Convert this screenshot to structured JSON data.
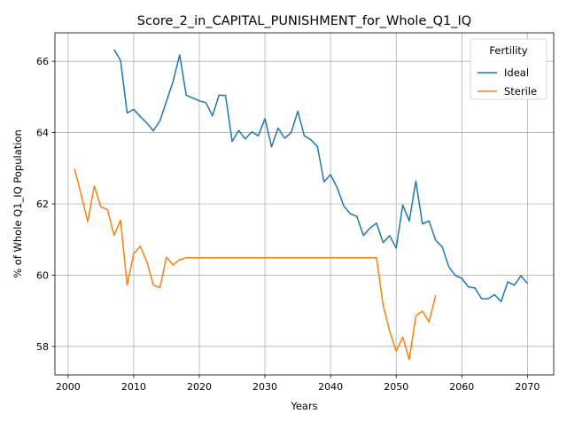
{
  "chart_data": {
    "type": "line",
    "title": "Score_2_in_CAPITAL_PUNISHMENT_for_Whole_Q1_IQ",
    "xlabel": "Years",
    "ylabel": "% of Whole Q1_IQ Population",
    "xlim": [
      1998,
      2074
    ],
    "ylim": [
      57.2,
      66.8
    ],
    "x_ticks": [
      2000,
      2010,
      2020,
      2030,
      2040,
      2050,
      2060,
      2070
    ],
    "y_ticks": [
      58,
      60,
      62,
      64,
      66
    ],
    "grid": true,
    "legend": {
      "title": "Fertility",
      "placement": "top-right"
    },
    "series": [
      {
        "name": "Ideal",
        "color": "#1f77b4",
        "x": [
          2007,
          2008,
          2009,
          2010,
          2011,
          2012,
          2013,
          2014,
          2015,
          2016,
          2017,
          2018,
          2019,
          2020,
          2021,
          2022,
          2023,
          2024,
          2025,
          2026,
          2027,
          2028,
          2029,
          2030,
          2031,
          2032,
          2033,
          2034,
          2035,
          2036,
          2037,
          2038,
          2039,
          2040,
          2041,
          2042,
          2043,
          2044,
          2045,
          2046,
          2047,
          2048,
          2049,
          2050,
          2051,
          2052,
          2053,
          2054,
          2055,
          2056,
          2057,
          2058,
          2059,
          2060,
          2061,
          2062,
          2063,
          2064,
          2065,
          2066,
          2067,
          2068,
          2069,
          2070
        ],
        "values": [
          66.33,
          66.02,
          64.55,
          64.65,
          64.45,
          64.27,
          64.05,
          64.33,
          64.88,
          65.43,
          66.18,
          65.05,
          64.97,
          64.89,
          64.84,
          64.47,
          65.05,
          65.04,
          63.75,
          64.06,
          63.82,
          64.02,
          63.91,
          64.39,
          63.6,
          64.13,
          63.84,
          64.0,
          64.6,
          63.91,
          63.8,
          63.61,
          62.62,
          62.82,
          62.46,
          61.95,
          61.72,
          61.65,
          61.11,
          61.32,
          61.46,
          60.91,
          61.11,
          60.76,
          61.97,
          61.52,
          62.64,
          61.44,
          61.52,
          60.98,
          60.8,
          60.24,
          59.99,
          59.91,
          59.67,
          59.64,
          59.34,
          59.34,
          59.45,
          59.26,
          59.81,
          59.72,
          59.98,
          59.77
        ]
      },
      {
        "name": "Sterile",
        "color": "#ff7f0e",
        "x": [
          2001,
          2002,
          2003,
          2004,
          2005,
          2006,
          2007,
          2008,
          2009,
          2010,
          2011,
          2012,
          2013,
          2014,
          2015,
          2016,
          2017,
          2018,
          2019,
          2020,
          2021,
          2022,
          2023,
          2024,
          2025,
          2026,
          2027,
          2028,
          2029,
          2030,
          2031,
          2032,
          2033,
          2034,
          2035,
          2036,
          2037,
          2038,
          2039,
          2040,
          2041,
          2042,
          2043,
          2044,
          2045,
          2046,
          2047,
          2048,
          2049,
          2050,
          2051,
          2052,
          2053,
          2054,
          2055,
          2056
        ],
        "values": [
          62.99,
          62.26,
          61.5,
          62.5,
          61.91,
          61.84,
          61.12,
          61.54,
          59.72,
          60.6,
          60.81,
          60.38,
          59.72,
          59.65,
          60.5,
          60.29,
          60.43,
          60.49,
          60.49,
          60.49,
          60.49,
          60.49,
          60.49,
          60.49,
          60.49,
          60.49,
          60.49,
          60.49,
          60.49,
          60.49,
          60.49,
          60.49,
          60.49,
          60.49,
          60.49,
          60.49,
          60.49,
          60.49,
          60.49,
          60.49,
          60.49,
          60.49,
          60.49,
          60.49,
          60.49,
          60.49,
          60.49,
          59.16,
          58.43,
          57.87,
          58.26,
          57.63,
          58.86,
          58.99,
          58.69,
          59.44
        ]
      }
    ]
  }
}
